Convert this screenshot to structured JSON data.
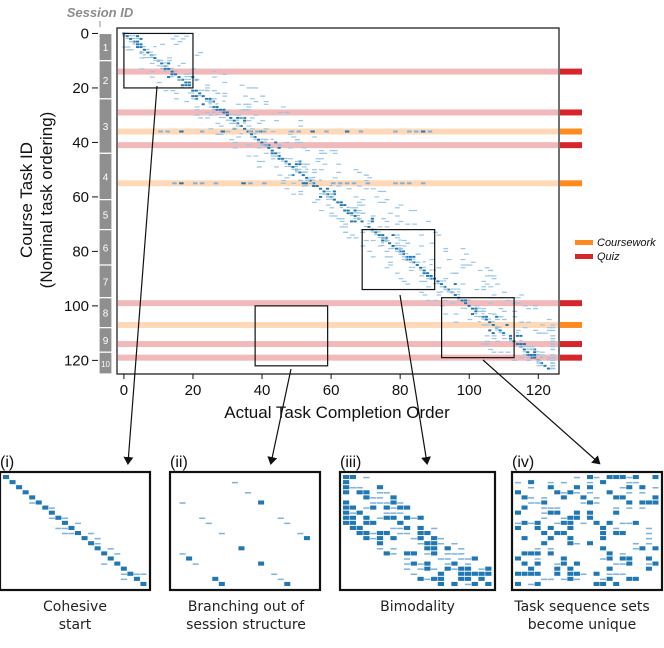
{
  "chart_data": {
    "type": "heatmap",
    "session_label": "Session ID",
    "xlabel": "Actual Task Completion Order",
    "ylabel_line1": "Course Task ID",
    "ylabel_line2": "(Nominal task ordering)",
    "xlim": [
      -2,
      126
    ],
    "ylim": [
      125,
      -2
    ],
    "xticks": [
      0,
      20,
      40,
      60,
      80,
      100,
      120
    ],
    "yticks": [
      0,
      20,
      40,
      60,
      80,
      100,
      120
    ],
    "grid": false,
    "legend_position": "right",
    "legend": [
      {
        "label": "Coursework",
        "color": "#ff8a1f"
      },
      {
        "label": "Quiz",
        "color": "#d7262b"
      }
    ],
    "sessions": [
      {
        "id": "1",
        "start": 0,
        "end": 10
      },
      {
        "id": "2",
        "start": 10,
        "end": 24
      },
      {
        "id": "3",
        "start": 24,
        "end": 44
      },
      {
        "id": "4",
        "start": 44,
        "end": 61
      },
      {
        "id": "5",
        "start": 61,
        "end": 72
      },
      {
        "id": "6",
        "start": 72,
        "end": 85
      },
      {
        "id": "7",
        "start": 85,
        "end": 97
      },
      {
        "id": "8",
        "start": 97,
        "end": 108
      },
      {
        "id": "9",
        "start": 108,
        "end": 117
      },
      {
        "id": "10",
        "start": 117,
        "end": 125
      }
    ],
    "highlighted_tasks": [
      {
        "task": 14,
        "kind": "Quiz"
      },
      {
        "task": 29,
        "kind": "Quiz"
      },
      {
        "task": 36,
        "kind": "Coursework"
      },
      {
        "task": 41,
        "kind": "Quiz"
      },
      {
        "task": 55,
        "kind": "Coursework"
      },
      {
        "task": 99,
        "kind": "Quiz"
      },
      {
        "task": 107,
        "kind": "Coursework"
      },
      {
        "task": 114,
        "kind": "Quiz"
      },
      {
        "task": 119,
        "kind": "Quiz"
      }
    ],
    "zoom_regions": [
      {
        "id": "(i)",
        "x": [
          0,
          20
        ],
        "y": [
          0,
          20
        ],
        "caption": "Cohesive start"
      },
      {
        "id": "(ii)",
        "x": [
          38,
          59
        ],
        "y": [
          100,
          122
        ],
        "caption": "Branching out of session structure"
      },
      {
        "id": "(iii)",
        "x": [
          69,
          90
        ],
        "y": [
          72,
          94
        ],
        "caption": "Bimodality"
      },
      {
        "id": "(iv)",
        "x": [
          92,
          113
        ],
        "y": [
          97,
          119
        ],
        "caption": "Task sequence sets become unique"
      }
    ]
  },
  "captions": {
    "i_line1": "Cohesive",
    "i_line2": "start",
    "ii_line1": "Branching out of",
    "ii_line2": "session structure",
    "iii_line1": "Bimodality",
    "iv_line1": "Task sequence sets",
    "iv_line2": "become unique"
  },
  "panel_labels": {
    "i": "(i)",
    "ii": "(ii)",
    "iii": "(iii)",
    "iv": "(iv)"
  }
}
